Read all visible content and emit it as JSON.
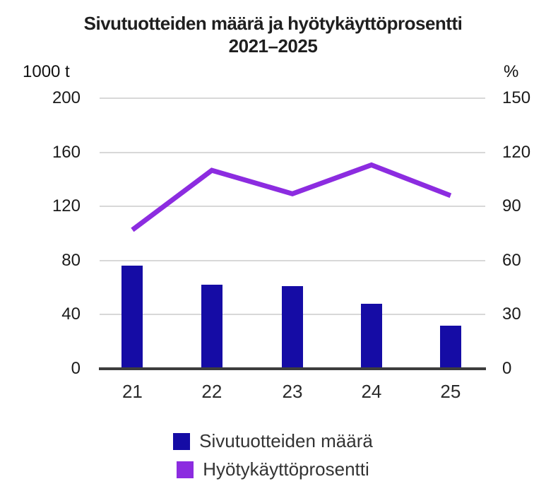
{
  "title": {
    "line1": "Sivutuotteiden määrä ja hyötykäyttöprosentti",
    "line2": "2021–2025"
  },
  "axes": {
    "left": {
      "unit": "1000 t",
      "ticks": [
        200,
        160,
        120,
        80,
        40,
        0
      ],
      "max": 200
    },
    "right": {
      "unit": "%",
      "ticks": [
        150,
        120,
        90,
        60,
        30,
        0
      ],
      "max": 150
    },
    "x": {
      "labels": [
        "21",
        "22",
        "23",
        "24",
        "25"
      ]
    }
  },
  "chart_data": {
    "type": "bar+line",
    "title": "Sivutuotteiden määrä ja hyötykäyttöprosentti 2021–2025",
    "categories": [
      "21",
      "22",
      "23",
      "24",
      "25"
    ],
    "series": [
      {
        "name": "Sivutuotteiden määrä",
        "type": "bar",
        "axis": "left",
        "values": [
          76,
          62,
          61,
          48,
          32
        ],
        "color": "#150ca5",
        "unit": "1000 t"
      },
      {
        "name": "Hyötykäyttöprosentti",
        "type": "line",
        "axis": "right",
        "values": [
          77,
          110,
          97,
          113,
          96
        ],
        "color": "#8c2ce0",
        "unit": "%"
      }
    ],
    "left_ylim": [
      0,
      200
    ],
    "right_ylim": [
      0,
      150
    ],
    "grid": true,
    "legend_position": "bottom"
  },
  "legend": {
    "items": [
      {
        "label": "Sivutuotteiden määrä",
        "color": "#150ca5"
      },
      {
        "label": "Hyötykäyttöprosentti",
        "color": "#8c2ce0"
      }
    ]
  },
  "colors": {
    "bar": "#150ca5",
    "line": "#8c2ce0",
    "gridline": "#d8d8d8",
    "axis_line": "#3d3d3d",
    "text": "#1b1b1b",
    "legend_text": "#333333",
    "background": "#ffffff"
  }
}
